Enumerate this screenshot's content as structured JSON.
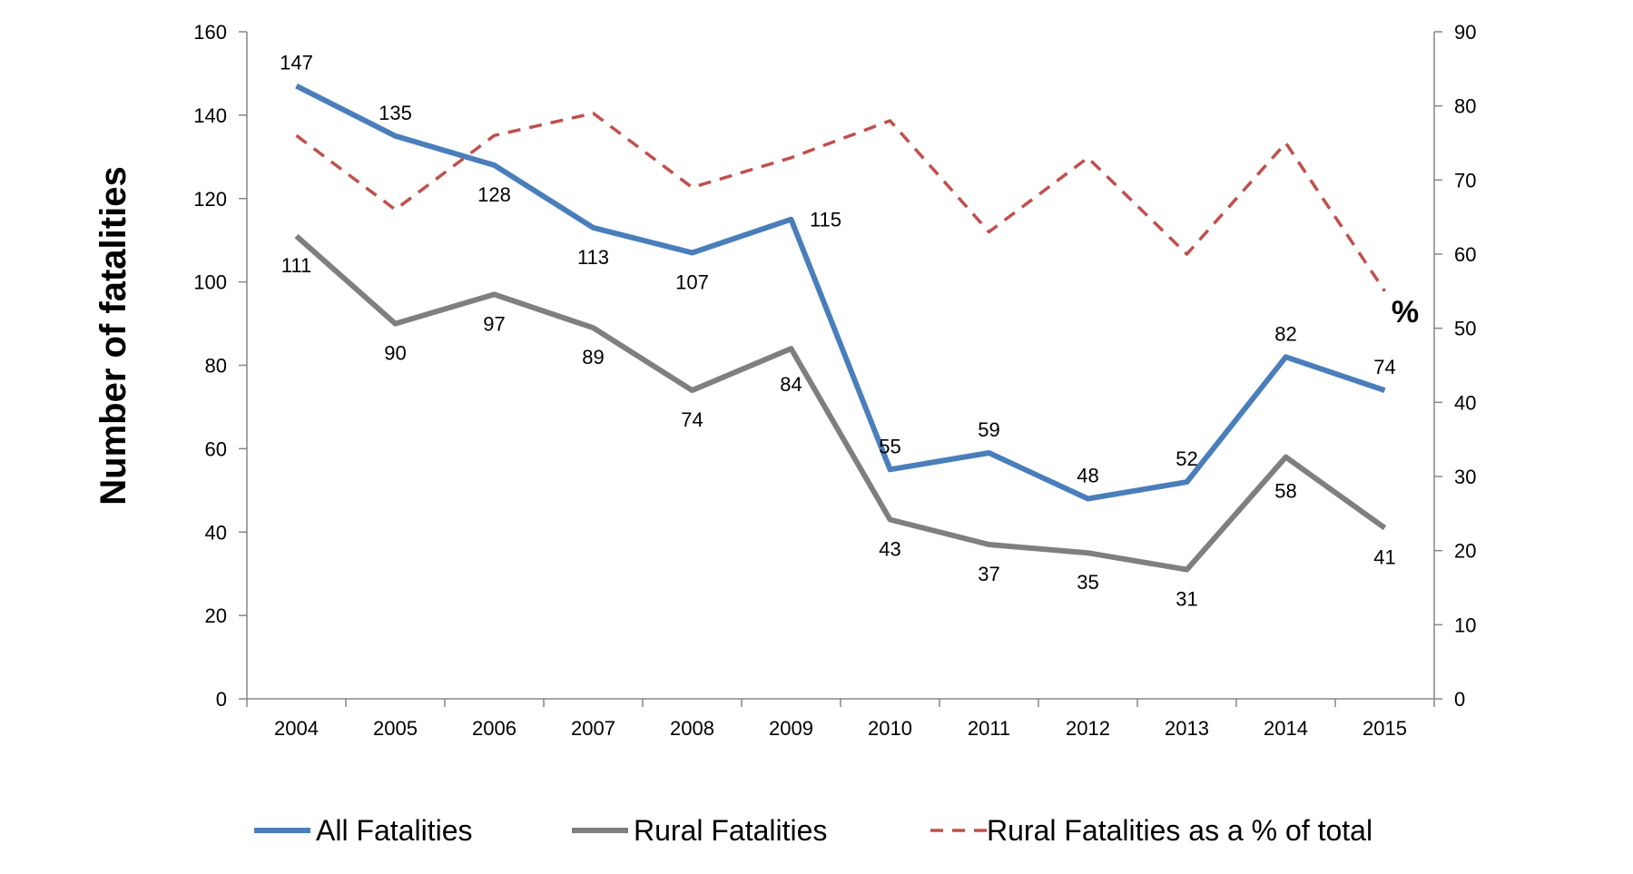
{
  "chart_data": {
    "type": "line",
    "title": "",
    "x": [
      "2004",
      "2005",
      "2006",
      "2007",
      "2008",
      "2009",
      "2010",
      "2011",
      "2012",
      "2013",
      "2014",
      "2015"
    ],
    "xlabel": "",
    "ylabel": "Number of fatalities",
    "y2label": "%",
    "ylim": [
      0,
      160
    ],
    "y2lim": [
      0,
      90
    ],
    "yticks": [
      0,
      20,
      40,
      60,
      80,
      100,
      120,
      140,
      160
    ],
    "y2ticks": [
      0,
      10,
      20,
      30,
      40,
      50,
      60,
      70,
      80,
      90
    ],
    "grid": false,
    "legend_position": "bottom",
    "series": [
      {
        "name": "All Fatalities",
        "axis": "left",
        "style": "solid",
        "color": "#4A7EBB",
        "show_labels": true,
        "values": [
          147,
          135,
          128,
          113,
          107,
          115,
          55,
          59,
          48,
          52,
          82,
          74
        ]
      },
      {
        "name": "Rural Fatalities",
        "axis": "left",
        "style": "solid",
        "color": "#7F7F7F",
        "show_labels": true,
        "values": [
          111,
          90,
          97,
          89,
          74,
          84,
          43,
          37,
          35,
          31,
          58,
          41
        ]
      },
      {
        "name": "Rural Fatalities as a % of total",
        "axis": "right",
        "style": "dashed",
        "color": "#C0504D",
        "show_labels": false,
        "values": [
          76,
          66,
          76,
          79,
          69,
          73,
          78,
          63,
          73,
          60,
          75,
          55
        ]
      }
    ]
  }
}
